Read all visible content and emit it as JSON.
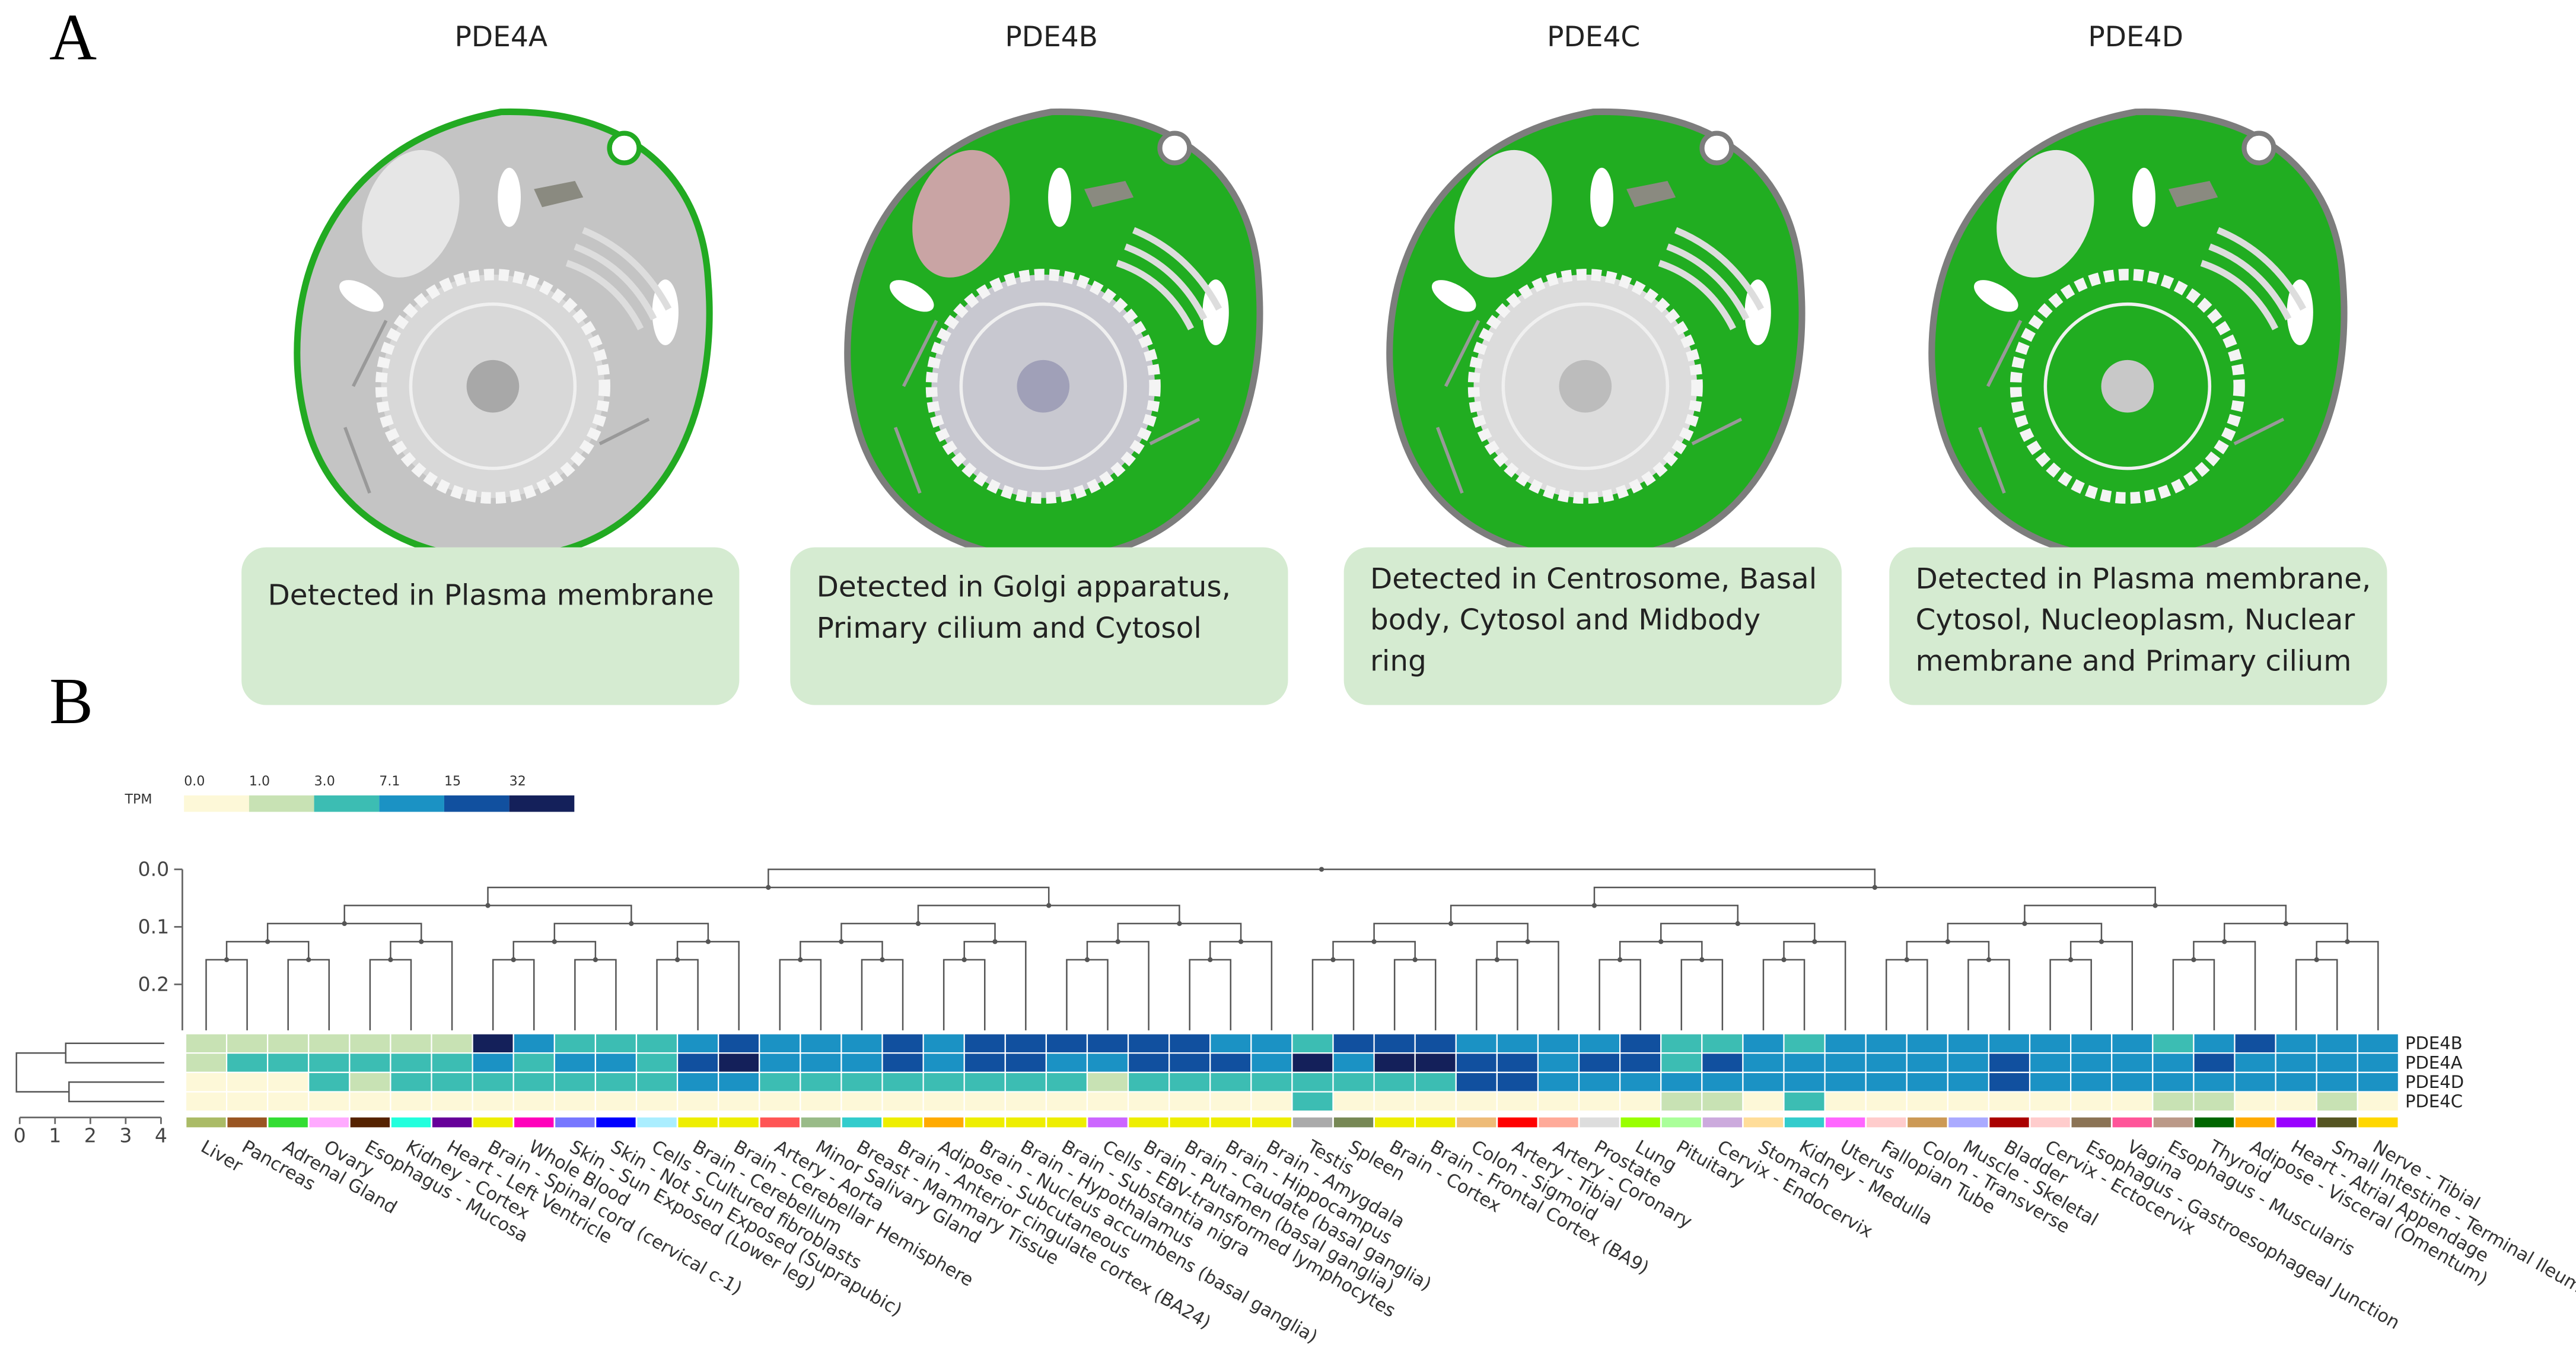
{
  "panel_labels": [
    "A",
    "B"
  ],
  "cells": [
    {
      "gene": "PDE4A",
      "description": [
        "Detected in Plasma membrane"
      ]
    },
    {
      "gene": "PDE4B",
      "description": [
        "Detected in Golgi apparatus,",
        "Primary cilium and Cytosol"
      ]
    },
    {
      "gene": "PDE4C",
      "description": [
        "Detected in Centrosome, Basal",
        "body, Cytosol and Midbody",
        "ring"
      ]
    },
    {
      "gene": "PDE4D",
      "description": [
        "Detected in Plasma membrane,",
        "Cytosol, Nucleoplasm, Nuclear",
        "membrane and Primary cilium"
      ]
    }
  ],
  "chart_data": {
    "type": "heatmap",
    "legend_title": "TPM",
    "colorbar_ticks": [
      {
        "value": 0,
        "label": "0.0"
      },
      {
        "value": 1,
        "label": "1.0"
      },
      {
        "value": 3,
        "label": "3.0"
      },
      7.1,
      15,
      32
    ],
    "colors": [
      "#fdf8d8",
      "#c8e2b4",
      "#3cbdb3",
      "#1b92c4",
      "#11509f",
      "#14205a"
    ],
    "rows": [
      "PDE4B",
      "PDE4A",
      "PDE4D",
      "PDE4C"
    ],
    "columns": [
      "Liver",
      "Pancreas",
      "Adrenal Gland",
      "Ovary",
      "Esophagus - Mucosa",
      "Kidney - Cortex",
      "Heart - Left Ventricle",
      "Brain - Spinal cord (cervical c-1)",
      "Whole Blood",
      "Skin - Sun Exposed (Lower leg)",
      "Skin - Not Sun Exposed (Suprapubic)",
      "Cells - Cultured fibroblasts",
      "Brain - Cerebellum",
      "Brain - Cerebellar Hemisphere",
      "Artery - Aorta",
      "Minor Salivary Gland",
      "Breast - Mammary Tissue",
      "Brain - Anterior cingulate cortex (BA24)",
      "Adipose - Subcutaneous",
      "Brain - Nucleus accumbens (basal ganglia)",
      "Brain - Hypothalamus",
      "Brain - Substantia nigra",
      "Cells - EBV-transformed lymphocytes",
      "Brain - Putamen (basal ganglia)",
      "Brain - Caudate (basal ganglia)",
      "Brain - Hippocampus",
      "Brain - Amygdala",
      "Testis",
      "Spleen",
      "Brain - Cortex",
      "Brain - Frontal Cortex (BA9)",
      "Colon - Sigmoid",
      "Artery - Tibial",
      "Artery - Coronary",
      "Prostate",
      "Lung",
      "Pituitary",
      "Cervix - Endocervix",
      "Stomach",
      "Kidney - Medulla",
      "Uterus",
      "Fallopian Tube",
      "Colon - Transverse",
      "Muscle - Skeletal",
      "Bladder",
      "Cervix - Ectocervix",
      "Esophagus - Gastroesophageal Junction",
      "Vagina",
      "Esophagus - Muscularis",
      "Thyroid",
      "Adipose - Visceral (Omentum)",
      "Heart - Atrial Appendage",
      "Small Intestine - Terminal Ileum",
      "Nerve - Tibial"
    ],
    "column_colors": [
      "#aabb66",
      "#995522",
      "#33dd33",
      "#ffaaff",
      "#552200",
      "#22ffdd",
      "#660099",
      "#eeee00",
      "#ff00bb",
      "#7777ff",
      "#0000ff",
      "#aaeeff",
      "#eeee00",
      "#eeee00",
      "#ff5555",
      "#99bb88",
      "#33cccc",
      "#eeee00",
      "#ffaa00",
      "#eeee00",
      "#eeee00",
      "#eeee00",
      "#cc66ff",
      "#eeee00",
      "#eeee00",
      "#eeee00",
      "#eeee00",
      "#aaaaaa",
      "#778855",
      "#eeee00",
      "#eeee00",
      "#eebb77",
      "#ff0000",
      "#ffaa99",
      "#dddddd",
      "#99ff00",
      "#aaff99",
      "#ccaadd",
      "#ffdd99",
      "#33cccc",
      "#ff66ff",
      "#ffcccc",
      "#cc9955",
      "#aaaaff",
      "#aa0000",
      "#ffcccc",
      "#8b7355",
      "#ff5599",
      "#bb9988",
      "#006600",
      "#ffaa00",
      "#9900ff",
      "#555522",
      "#ffd700"
    ],
    "values": [
      [
        2,
        2,
        2,
        2,
        2,
        2,
        2,
        40,
        10,
        5,
        5,
        5,
        10,
        20,
        10,
        10,
        10,
        20,
        10,
        20,
        20,
        20,
        20,
        20,
        20,
        10,
        10,
        5,
        20,
        20,
        20,
        10,
        10,
        10,
        10,
        20,
        5,
        5,
        10,
        5,
        10,
        10,
        10,
        10,
        10,
        10,
        10,
        10,
        5,
        10,
        20,
        10,
        10,
        10
      ],
      [
        2,
        5,
        5,
        5,
        5,
        5,
        5,
        10,
        5,
        10,
        10,
        5,
        20,
        40,
        10,
        10,
        10,
        20,
        10,
        20,
        20,
        10,
        10,
        20,
        20,
        20,
        10,
        40,
        10,
        40,
        40,
        20,
        20,
        10,
        20,
        20,
        5,
        20,
        10,
        10,
        10,
        10,
        10,
        10,
        20,
        10,
        10,
        10,
        10,
        20,
        10,
        10,
        10,
        10
      ],
      [
        0.5,
        0.5,
        0.5,
        5,
        2,
        5,
        5,
        5,
        5,
        5,
        5,
        5,
        10,
        10,
        5,
        5,
        5,
        5,
        5,
        5,
        5,
        5,
        2,
        5,
        5,
        5,
        5,
        5,
        5,
        5,
        5,
        20,
        20,
        10,
        10,
        10,
        10,
        10,
        10,
        10,
        10,
        10,
        10,
        10,
        20,
        10,
        10,
        10,
        10,
        10,
        10,
        10,
        10,
        10
      ],
      [
        0.5,
        0.5,
        0.5,
        0.5,
        0.5,
        0.5,
        0.5,
        0.5,
        0.5,
        0.5,
        0.5,
        0.5,
        0.5,
        0.5,
        0.5,
        0.5,
        0.5,
        0.5,
        0.5,
        0.5,
        0.5,
        0.5,
        0.5,
        0.5,
        0.5,
        0.5,
        0.5,
        5,
        0.5,
        0.5,
        0.5,
        0.5,
        0.5,
        0.5,
        0.5,
        0.5,
        2,
        2,
        0.5,
        5,
        0.5,
        0.5,
        0.5,
        0.5,
        0.5,
        0.5,
        0.5,
        0.5,
        2,
        2,
        0.5,
        0.5,
        2,
        0.5
      ]
    ],
    "dendrogram_ylim": [
      0,
      0.28
    ],
    "dendrogram_yticks": [
      {
        "value": 0,
        "label": "0.0"
      },
      {
        "value": 0.1,
        "label": "0.1"
      },
      {
        "value": 0.2,
        "label": "0.2"
      }
    ],
    "row_dendrogram_xlim": [
      0,
      4
    ],
    "row_dendrogram_xticks": [
      0,
      1,
      2,
      3,
      4
    ]
  }
}
